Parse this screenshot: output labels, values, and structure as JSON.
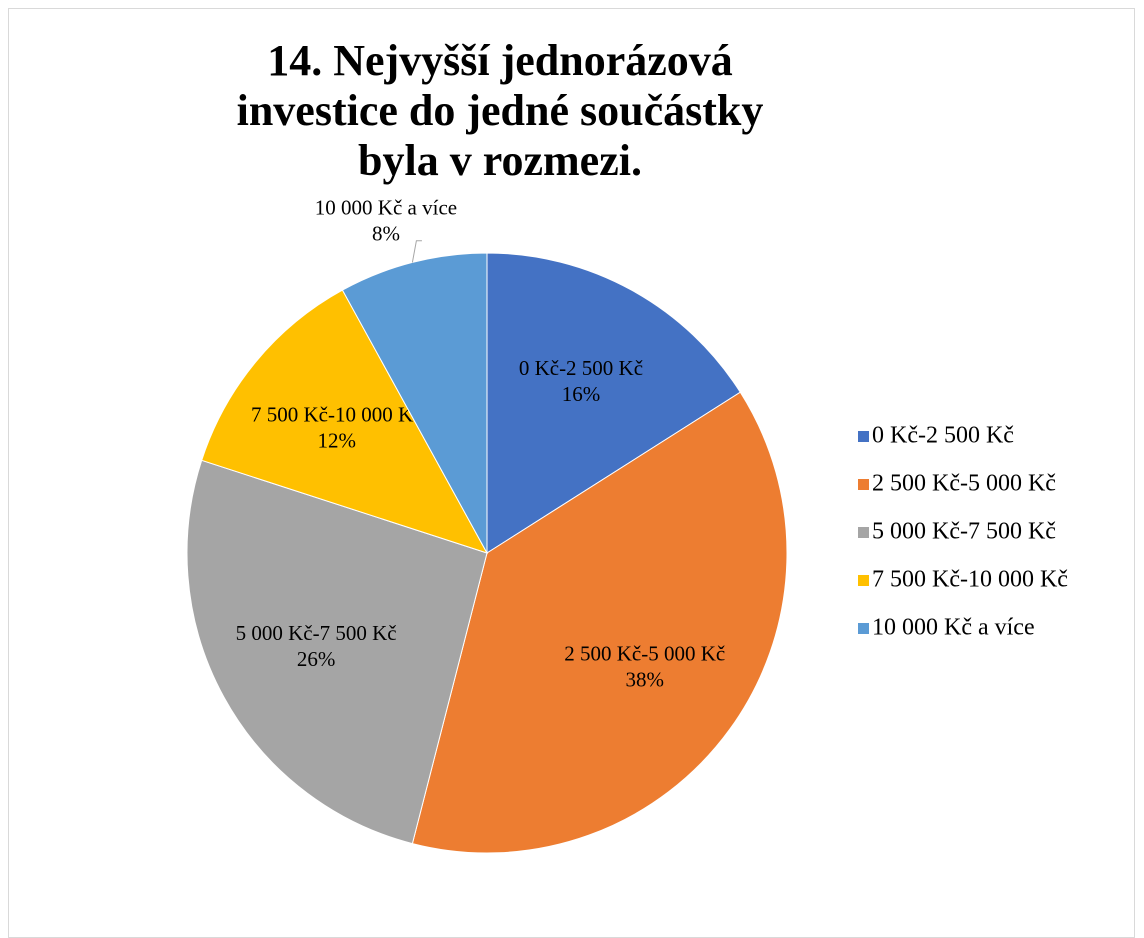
{
  "chart_data": {
    "type": "pie",
    "title": "14. Nejvyšší jednorázová investice do jedné součástky byla v rozmezi.",
    "categories": [
      "0 Kč-2 500 Kč",
      "2 500 Kč-5 000 Kč",
      "5 000 Kč-7 500 Kč",
      "7 500 Kč-10 000 Kč",
      "10 000 Kč a více"
    ],
    "values": [
      16,
      38,
      26,
      12,
      8
    ],
    "value_labels": [
      "16%",
      "38%",
      "26%",
      "12%",
      "8%"
    ],
    "colors": [
      "#4472c4",
      "#ed7d31",
      "#a5a5a5",
      "#ffc000",
      "#5b9bd5"
    ],
    "legend": "right"
  }
}
